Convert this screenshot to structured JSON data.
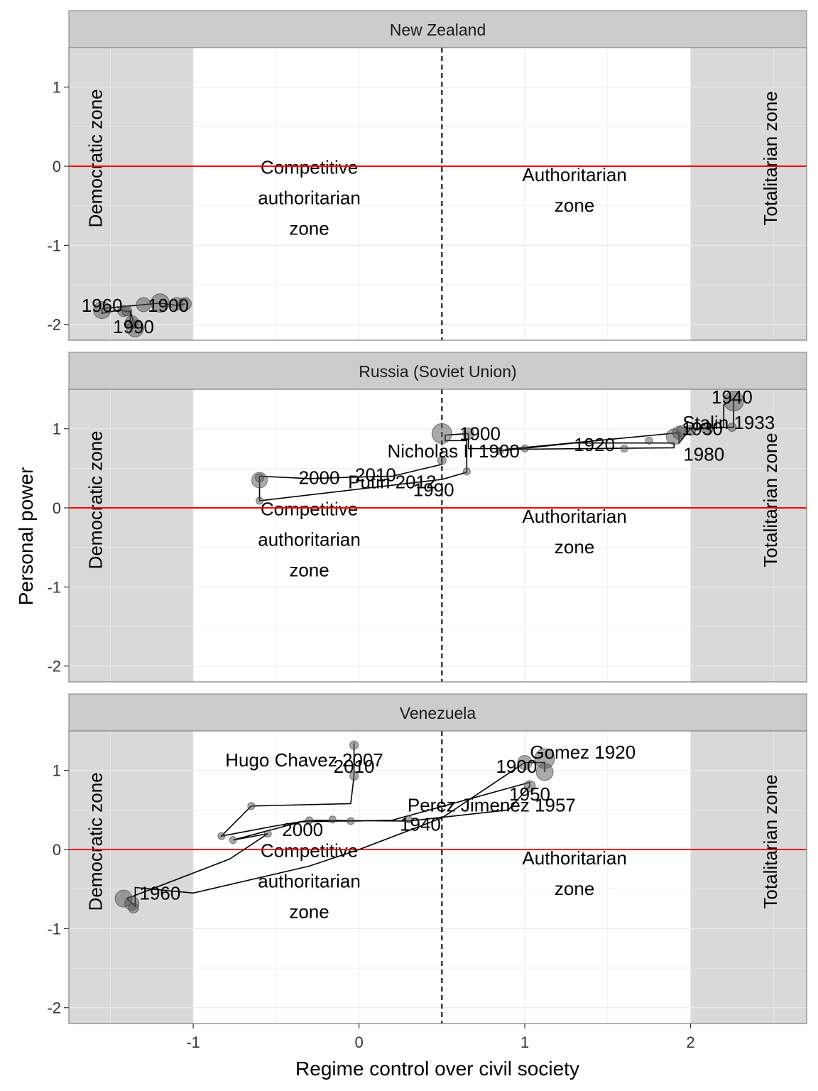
{
  "chart_data": {
    "type": "line",
    "xlabel": "Regime control over civil society",
    "ylabel": "Personal power",
    "xlim": [
      -1.75,
      2.7
    ],
    "ylim": [
      -2.2,
      1.5
    ],
    "x_ticks": [
      "-1",
      "0",
      "1",
      "2"
    ],
    "x_tick_values": [
      -1,
      0,
      1,
      2
    ],
    "y_ticks": [
      "1",
      "0",
      "-1",
      "-2"
    ],
    "y_tick_values": [
      1,
      0,
      -1,
      -2
    ],
    "grid": true,
    "shaded_x_ranges": [
      [
        -1.75,
        -1
      ],
      [
        2,
        2.7
      ]
    ],
    "zone_labels": {
      "democratic": "Democratic zone",
      "totalitarian": "Totalitarian zone",
      "competitive": [
        "Competitive",
        "authoritarian",
        "zone"
      ],
      "competitive_pos": [
        -0.3,
        -0.4
      ],
      "authoritarian": [
        "Authoritarian",
        "zone"
      ],
      "authoritarian_pos": [
        1.3,
        -0.3
      ]
    },
    "vline_x": 0.5,
    "hline_y": 0,
    "colors": {
      "hline": "#ff0000",
      "shade": "#d9d9d9",
      "strip": "#cccccc",
      "grid": "#ebebeb",
      "line": "#000000",
      "point": "#555555"
    },
    "panels": [
      {
        "name": "New Zealand",
        "path": [
          [
            -1.05,
            -1.74
          ],
          [
            -1.1,
            -1.76
          ],
          [
            -1.2,
            -1.73
          ],
          [
            -1.3,
            -1.75
          ],
          [
            -1.55,
            -1.8
          ],
          [
            -1.55,
            -1.86
          ],
          [
            -1.45,
            -1.82
          ],
          [
            -1.38,
            -1.84
          ],
          [
            -1.38,
            -1.98
          ],
          [
            -1.35,
            -2.05
          ],
          [
            -1.38,
            -1.82
          ]
        ],
        "points": [
          [
            -1.55,
            -1.82,
            12
          ],
          [
            -1.3,
            -1.75,
            10
          ],
          [
            -1.2,
            -1.73,
            13
          ],
          [
            -1.1,
            -1.74,
            9
          ],
          [
            -1.05,
            -1.74,
            9
          ],
          [
            -1.42,
            -1.83,
            8
          ],
          [
            -1.35,
            -2.05,
            12
          ],
          [
            -1.37,
            -1.97,
            9
          ],
          [
            -1.4,
            -1.83,
            7
          ]
        ],
        "labels": [
          {
            "text": "1960",
            "x": -1.55,
            "y": -1.76
          },
          {
            "text": "1900",
            "x": -1.15,
            "y": -1.76
          },
          {
            "text": "1990",
            "x": -1.36,
            "y": -2.03
          }
        ]
      },
      {
        "name": "Russia (Soviet Union)",
        "path": [
          [
            0.5,
            0.62
          ],
          [
            0.5,
            0.55
          ],
          [
            0.2,
            0.4
          ],
          [
            0.0,
            0.39
          ],
          [
            -0.3,
            0.37
          ],
          [
            -0.6,
            0.4
          ],
          [
            -0.6,
            0.09
          ],
          [
            0.5,
            0.36
          ],
          [
            0.65,
            0.45
          ],
          [
            0.65,
            0.85
          ],
          [
            0.52,
            0.85
          ],
          [
            0.52,
            0.92
          ],
          [
            0.66,
            0.94
          ],
          [
            0.66,
            0.75
          ],
          [
            0.85,
            0.75
          ],
          [
            0.85,
            0.72
          ],
          [
            1.3,
            0.82
          ],
          [
            1.9,
            0.82
          ],
          [
            1.9,
            0.76
          ],
          [
            0.88,
            0.74
          ],
          [
            1.93,
            0.95
          ],
          [
            1.93,
            0.82
          ],
          [
            2.0,
            1.0
          ],
          [
            2.2,
            1.02
          ],
          [
            2.2,
            1.3
          ],
          [
            2.26,
            1.38
          ],
          [
            2.26,
            1.02
          ],
          [
            2.0,
            1.0
          ],
          [
            2.02,
            0.95
          ]
        ],
        "points": [
          [
            -0.6,
            0.35,
            11
          ],
          [
            -0.6,
            0.38,
            6
          ],
          [
            -0.6,
            0.09,
            5
          ],
          [
            0.5,
            0.94,
            14
          ],
          [
            0.5,
            0.6,
            6
          ],
          [
            0.65,
            0.46,
            5
          ],
          [
            0.66,
            0.94,
            8
          ],
          [
            0.85,
            0.72,
            5
          ],
          [
            1.0,
            0.75,
            5
          ],
          [
            1.6,
            0.75,
            5
          ],
          [
            1.75,
            0.85,
            5
          ],
          [
            1.9,
            0.9,
            11
          ],
          [
            1.93,
            0.95,
            9
          ],
          [
            1.95,
            0.97,
            8
          ],
          [
            2.0,
            0.98,
            7
          ],
          [
            2.1,
            1.0,
            8
          ],
          [
            2.26,
            1.35,
            14
          ],
          [
            2.25,
            1.02,
            6
          ]
        ],
        "labels": [
          {
            "text": "1900",
            "x": 0.73,
            "y": 0.94
          },
          {
            "text": "Nicholas II 1900",
            "x": 0.57,
            "y": 0.72
          },
          {
            "text": "1920",
            "x": 1.42,
            "y": 0.8
          },
          {
            "text": "1980",
            "x": 2.08,
            "y": 0.68
          },
          {
            "text": "1940",
            "x": 2.25,
            "y": 1.4
          },
          {
            "text": "Stalin 1933",
            "x": 2.23,
            "y": 1.08
          },
          {
            "text": "1930",
            "x": 2.07,
            "y": 1.0
          },
          {
            "text": "2000",
            "x": -0.24,
            "y": 0.38
          },
          {
            "text": "2010",
            "x": 0.1,
            "y": 0.42
          },
          {
            "text": "Putin 2012",
            "x": 0.2,
            "y": 0.33
          },
          {
            "text": "1990",
            "x": 0.45,
            "y": 0.23
          }
        ]
      },
      {
        "name": "Venezuela",
        "path": [
          [
            -0.03,
            1.35
          ],
          [
            -0.03,
            1.28
          ],
          [
            -0.03,
            0.93
          ],
          [
            -0.05,
            0.58
          ],
          [
            -0.65,
            0.55
          ],
          [
            -0.83,
            0.17
          ],
          [
            -0.5,
            0.3
          ],
          [
            -0.3,
            0.37
          ],
          [
            0.3,
            0.36
          ],
          [
            0.9,
            0.5
          ],
          [
            1.03,
            0.8
          ],
          [
            1.03,
            0.85
          ],
          [
            0.2,
            0.37
          ],
          [
            -0.05,
            0.36
          ],
          [
            -0.12,
            0.36
          ],
          [
            -0.35,
            0.35
          ],
          [
            -0.76,
            0.12
          ],
          [
            -0.55,
            0.2
          ],
          [
            -0.78,
            -0.12
          ],
          [
            -1.4,
            -0.62
          ],
          [
            -1.35,
            -0.72
          ],
          [
            -1.35,
            -0.55
          ],
          [
            -1.35,
            -0.48
          ],
          [
            -1.0,
            -0.55
          ],
          [
            -0.3,
            -0.21
          ],
          [
            0.0,
            0.0
          ],
          [
            0.5,
            0.4
          ],
          [
            1.0,
            1.1
          ],
          [
            1.12,
            1.1
          ],
          [
            1.12,
            0.98
          ]
        ],
        "points": [
          [
            -1.42,
            -0.62,
            12
          ],
          [
            -1.37,
            -0.68,
            10
          ],
          [
            -1.36,
            -0.74,
            7
          ],
          [
            -0.03,
            1.32,
            6
          ],
          [
            -0.03,
            0.93,
            6
          ],
          [
            -0.65,
            0.55,
            5
          ],
          [
            -0.83,
            0.17,
            5
          ],
          [
            -0.76,
            0.12,
            5
          ],
          [
            -0.55,
            0.2,
            5
          ],
          [
            -0.3,
            0.37,
            5
          ],
          [
            -0.16,
            0.38,
            5
          ],
          [
            -0.05,
            0.36,
            5
          ],
          [
            1.0,
            1.1,
            10
          ],
          [
            1.12,
            1.15,
            14
          ],
          [
            1.12,
            0.98,
            12
          ],
          [
            1.03,
            0.8,
            8
          ],
          [
            0.3,
            0.38,
            5
          ]
        ],
        "labels": [
          {
            "text": "Gomez 1920",
            "x": 1.35,
            "y": 1.23
          },
          {
            "text": "1900",
            "x": 0.95,
            "y": 1.05
          },
          {
            "text": "1950",
            "x": 1.03,
            "y": 0.7
          },
          {
            "text": "Perez Jimenez 1957",
            "x": 0.8,
            "y": 0.56
          },
          {
            "text": "1940",
            "x": 0.37,
            "y": 0.32
          },
          {
            "text": "Hugo Chavez 2007",
            "x": -0.33,
            "y": 1.13
          },
          {
            "text": "2010",
            "x": -0.03,
            "y": 1.05
          },
          {
            "text": "2000",
            "x": -0.34,
            "y": 0.25
          },
          {
            "text": "1960",
            "x": -1.2,
            "y": -0.55
          }
        ]
      }
    ]
  }
}
